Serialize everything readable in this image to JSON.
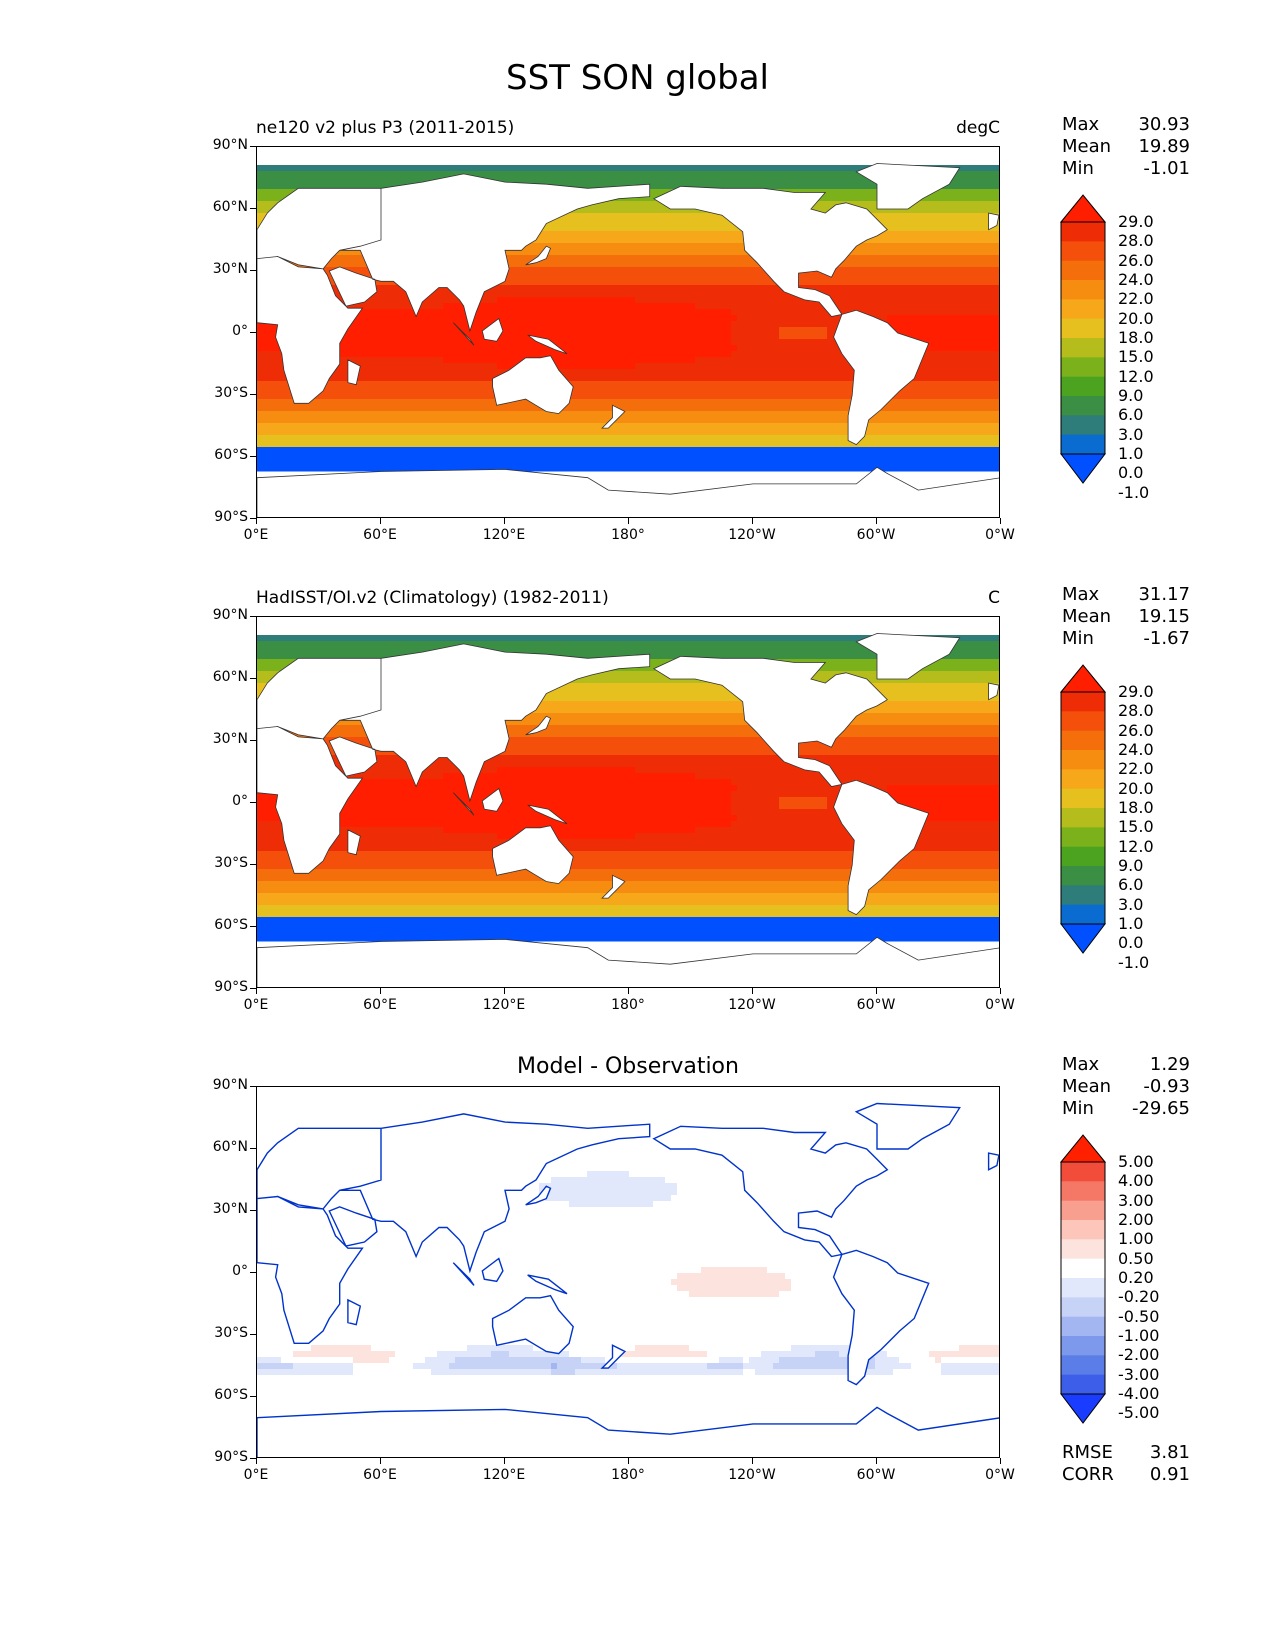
{
  "title": "SST SON global",
  "panels": [
    {
      "left_title": "ne120 v2 plus P3 (2011-2015)",
      "right_title": "degC",
      "stats": [
        {
          "k": "Max",
          "v": "30.93"
        },
        {
          "k": "Mean",
          "v": "19.89"
        },
        {
          "k": "Min",
          "v": "-1.01"
        }
      ],
      "levels": [
        "29.0",
        "28.0",
        "26.0",
        "24.0",
        "22.0",
        "20.0",
        "18.0",
        "15.0",
        "12.0",
        "9.0",
        "6.0",
        "3.0",
        "1.0",
        "0.0",
        "-1.0"
      ]
    },
    {
      "left_title": "HadISST/OI.v2 (Climatology) (1982-2011)",
      "right_title": "C",
      "stats": [
        {
          "k": "Max",
          "v": "31.17"
        },
        {
          "k": "Mean",
          "v": "19.15"
        },
        {
          "k": "Min",
          "v": "-1.67"
        }
      ],
      "levels": [
        "29.0",
        "28.0",
        "26.0",
        "24.0",
        "22.0",
        "20.0",
        "18.0",
        "15.0",
        "12.0",
        "9.0",
        "6.0",
        "3.0",
        "1.0",
        "0.0",
        "-1.0"
      ]
    },
    {
      "center_title": "Model - Observation",
      "stats": [
        {
          "k": "Max",
          "v": "1.29"
        },
        {
          "k": "Mean",
          "v": "-0.93"
        },
        {
          "k": "Min",
          "v": "-29.65"
        }
      ],
      "levels": [
        "5.00",
        "4.00",
        "3.00",
        "2.00",
        "1.00",
        "0.50",
        "0.20",
        "-0.20",
        "-0.50",
        "-1.00",
        "-2.00",
        "-3.00",
        "-4.00",
        "-5.00"
      ],
      "extra_stats": [
        {
          "k": "RMSE",
          "v": "3.81"
        },
        {
          "k": "CORR",
          "v": "0.91"
        }
      ]
    }
  ],
  "axes": {
    "lat_labels": [
      "90°N",
      "60°N",
      "30°N",
      "0°",
      "30°S",
      "60°S",
      "90°S"
    ],
    "lon_labels": [
      "0°E",
      "60°E",
      "120°E",
      "180°",
      "120°W",
      "60°W",
      "0°W"
    ]
  },
  "colors": {
    "sst_scale": [
      "#0050ff",
      "#0a6bd0",
      "#2e7d7a",
      "#3a8f44",
      "#4ca31f",
      "#7bb21c",
      "#b4bd1c",
      "#e6c01e",
      "#f6a71a",
      "#f78d10",
      "#f56e0c",
      "#f44f0b",
      "#ee2d06",
      "#ff1e00"
    ],
    "diff_scale": [
      "#1a3cff",
      "#3c5ee8",
      "#5b7de8",
      "#7d99ec",
      "#a3b6f2",
      "#c7d3f6",
      "#e1e8fb",
      "#ffffff",
      "#fde3de",
      "#fcc6bb",
      "#f99f8f",
      "#f57866",
      "#f14d3a",
      "#ff2000"
    ],
    "coast": "#333333",
    "diff_coast": "#0033cc"
  }
}
